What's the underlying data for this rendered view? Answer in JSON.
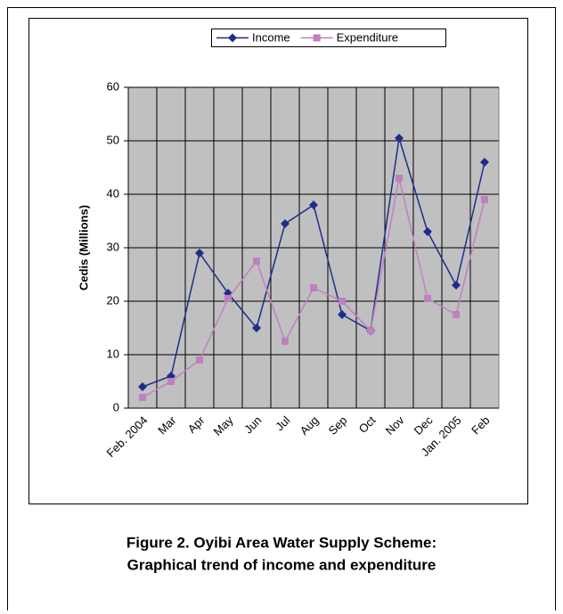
{
  "chart_data": {
    "type": "line",
    "caption": [
      "Figure 2. Oyibi Area Water Supply Scheme:",
      "Graphical trend of income and expenditure"
    ],
    "y_label": "Cedis (Millions)",
    "categories": [
      "Feb. 2004",
      "Mar",
      "Apr",
      "May",
      "Jun",
      "Jul",
      "Aug",
      "Sep",
      "Oct",
      "Nov",
      "Dec",
      "Jan. 2005",
      "Feb"
    ],
    "series": [
      {
        "name": "Income",
        "color": "#1f2d8a",
        "marker": "diamond",
        "values": [
          4,
          6,
          29,
          21.5,
          15,
          34.5,
          38,
          17.5,
          14.5,
          50.5,
          33,
          23,
          46
        ]
      },
      {
        "name": "Expenditure",
        "color": "#c080c0",
        "marker": "square",
        "values": [
          2,
          5,
          9,
          20.5,
          27.5,
          12.5,
          22.5,
          20,
          14.5,
          43,
          20.5,
          17.5,
          39
        ]
      }
    ],
    "ylim": [
      0,
      60
    ],
    "yticks": [
      0,
      10,
      20,
      30,
      40,
      50,
      60
    ],
    "grid": true,
    "legend": "top"
  }
}
